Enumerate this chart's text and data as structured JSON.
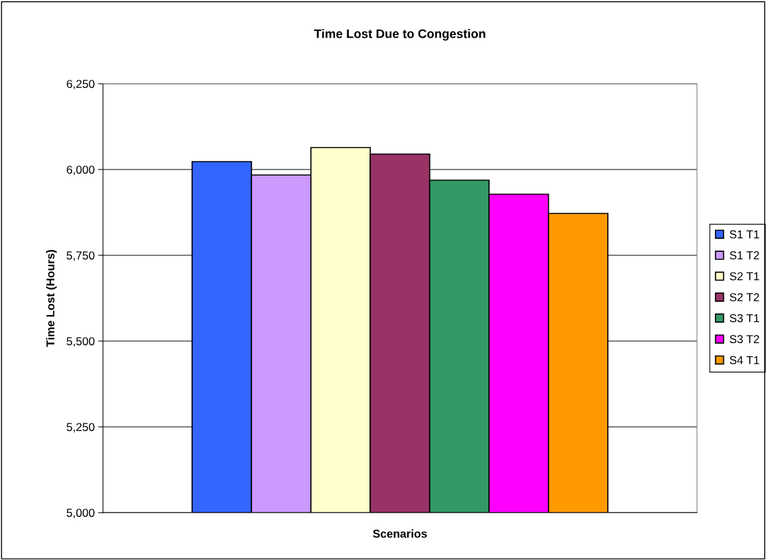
{
  "chart_data": {
    "type": "bar",
    "title": "Time Lost Due to Congestion",
    "xlabel": "Scenarios",
    "ylabel": "Time Lost (Hours)",
    "categories": [
      null
    ],
    "series": [
      {
        "name": "S1 T1",
        "color": "#3366ff",
        "values": [
          6023
        ]
      },
      {
        "name": "S1 T2",
        "color": "#cc99ff",
        "values": [
          5984
        ]
      },
      {
        "name": "S2 T1",
        "color": "#ffffcc",
        "values": [
          6064
        ]
      },
      {
        "name": "S2 T2",
        "color": "#993366",
        "values": [
          6045
        ]
      },
      {
        "name": "S3 T1",
        "color": "#339966",
        "values": [
          5969
        ]
      },
      {
        "name": "S3 T2",
        "color": "#ff00ff",
        "values": [
          5928
        ]
      },
      {
        "name": "S4 T1",
        "color": "#ff9900",
        "values": [
          5872
        ]
      }
    ],
    "ylim": [
      5000,
      6250
    ],
    "yticks": [
      {
        "value": 5000,
        "label": "5,000"
      },
      {
        "value": 5250,
        "label": "5,250"
      },
      {
        "value": 5500,
        "label": "5,500"
      },
      {
        "value": 5750,
        "label": "5,750"
      },
      {
        "value": 6000,
        "label": "6,000"
      },
      {
        "value": 6250,
        "label": "6,250"
      }
    ],
    "grid": "y",
    "legend": "right"
  }
}
